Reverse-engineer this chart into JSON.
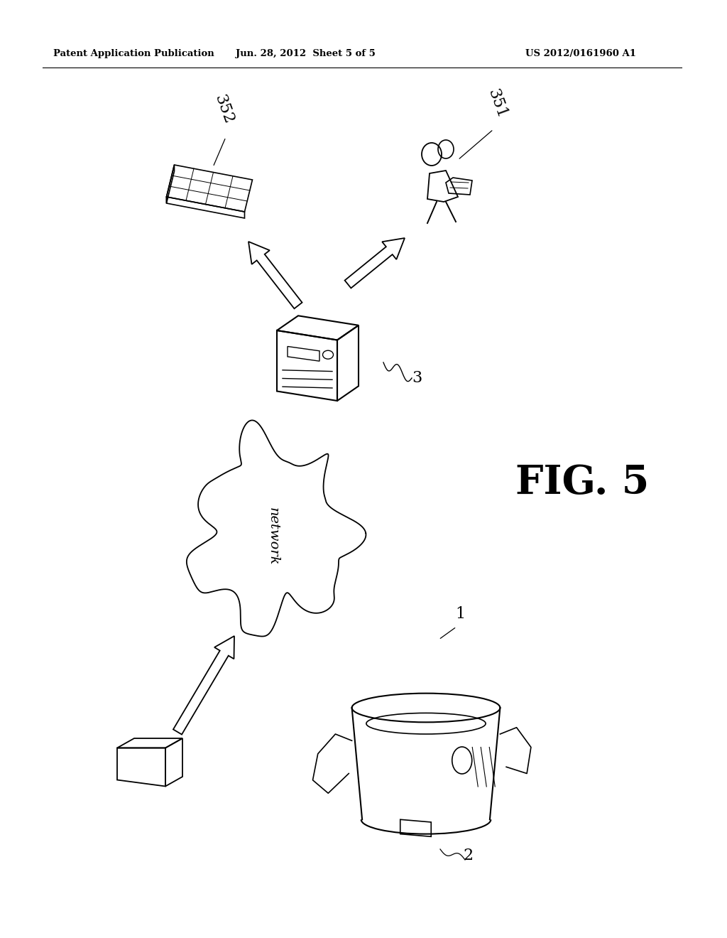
{
  "background_color": "#ffffff",
  "header_left": "Patent Application Publication",
  "header_center": "Jun. 28, 2012  Sheet 5 of 5",
  "header_right": "US 2012/0161960 A1",
  "fig_label": "FIG. 5"
}
